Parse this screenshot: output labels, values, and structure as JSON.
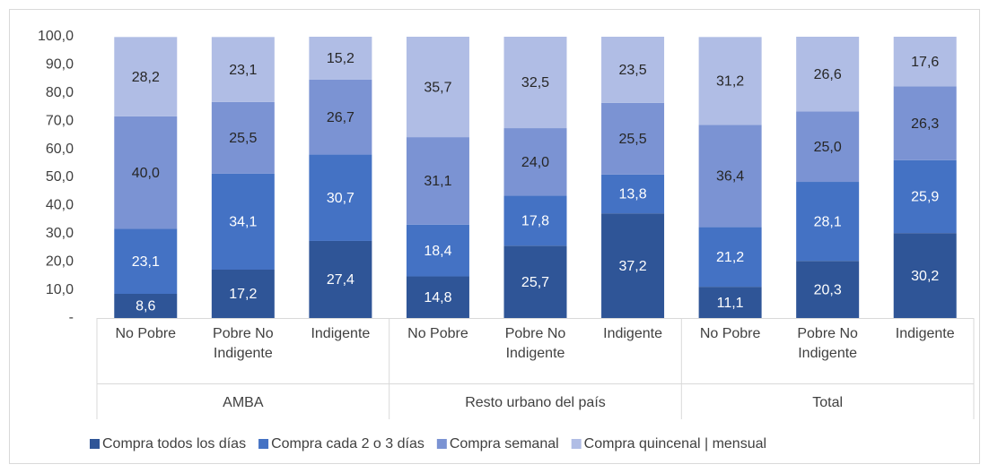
{
  "chart_data": {
    "type": "stacked_bar",
    "categories": [
      "No Pobre",
      "Pobre No Indigente",
      "Indigente",
      "No Pobre",
      "Pobre No Indigente",
      "Indigente",
      "No Pobre",
      "Pobre No Indigente",
      "Indigente"
    ],
    "groups": [
      "AMBA",
      "Resto urbano del país",
      "Total"
    ],
    "series": [
      {
        "name": "Compra todos los días",
        "color": "#2f5597",
        "values": [
          8.6,
          17.2,
          27.4,
          14.8,
          25.7,
          37.2,
          11.1,
          20.3,
          30.2
        ],
        "value_labels": [
          "8,6",
          "17,2",
          "27,4",
          "14,8",
          "25,7",
          "37,2",
          "11,1",
          "20,3",
          "30,2"
        ]
      },
      {
        "name": "Compra cada 2 o 3 días",
        "color": "#4472c4",
        "values": [
          23.1,
          34.1,
          30.7,
          18.4,
          17.8,
          13.8,
          21.2,
          28.1,
          25.9
        ],
        "value_labels": [
          "23,1",
          "34,1",
          "30,7",
          "18,4",
          "17,8",
          "13,8",
          "21,2",
          "28,1",
          "25,9"
        ]
      },
      {
        "name": "Compra semanal",
        "color": "#7b93d3",
        "values": [
          40.0,
          25.5,
          26.7,
          31.1,
          24.0,
          25.5,
          36.4,
          25.0,
          26.3
        ],
        "value_labels": [
          "40,0",
          "25,5",
          "26,7",
          "31,1",
          "24,0",
          "25,5",
          "36,4",
          "25,0",
          "26,3"
        ]
      },
      {
        "name": "Compra quincenal | mensual",
        "color": "#b0bde5",
        "values": [
          28.2,
          23.1,
          15.2,
          35.7,
          32.5,
          23.5,
          31.2,
          26.6,
          17.6
        ],
        "value_labels": [
          "28,2",
          "23,1",
          "15,2",
          "35,7",
          "32,5",
          "23,5",
          "31,2",
          "26,6",
          "17,6"
        ]
      }
    ],
    "ylim": [
      0,
      100
    ],
    "yticks": [
      {
        "value": 0,
        "label": "-"
      },
      {
        "value": 10,
        "label": "10,0"
      },
      {
        "value": 20,
        "label": "20,0"
      },
      {
        "value": 30,
        "label": "30,0"
      },
      {
        "value": 40,
        "label": "40,0"
      },
      {
        "value": 50,
        "label": "50,0"
      },
      {
        "value": 60,
        "label": "60,0"
      },
      {
        "value": 70,
        "label": "70,0"
      },
      {
        "value": 80,
        "label": "80,0"
      },
      {
        "value": 90,
        "label": "90,0"
      },
      {
        "value": 100,
        "label": "100,0"
      }
    ],
    "legend": "bottom"
  }
}
